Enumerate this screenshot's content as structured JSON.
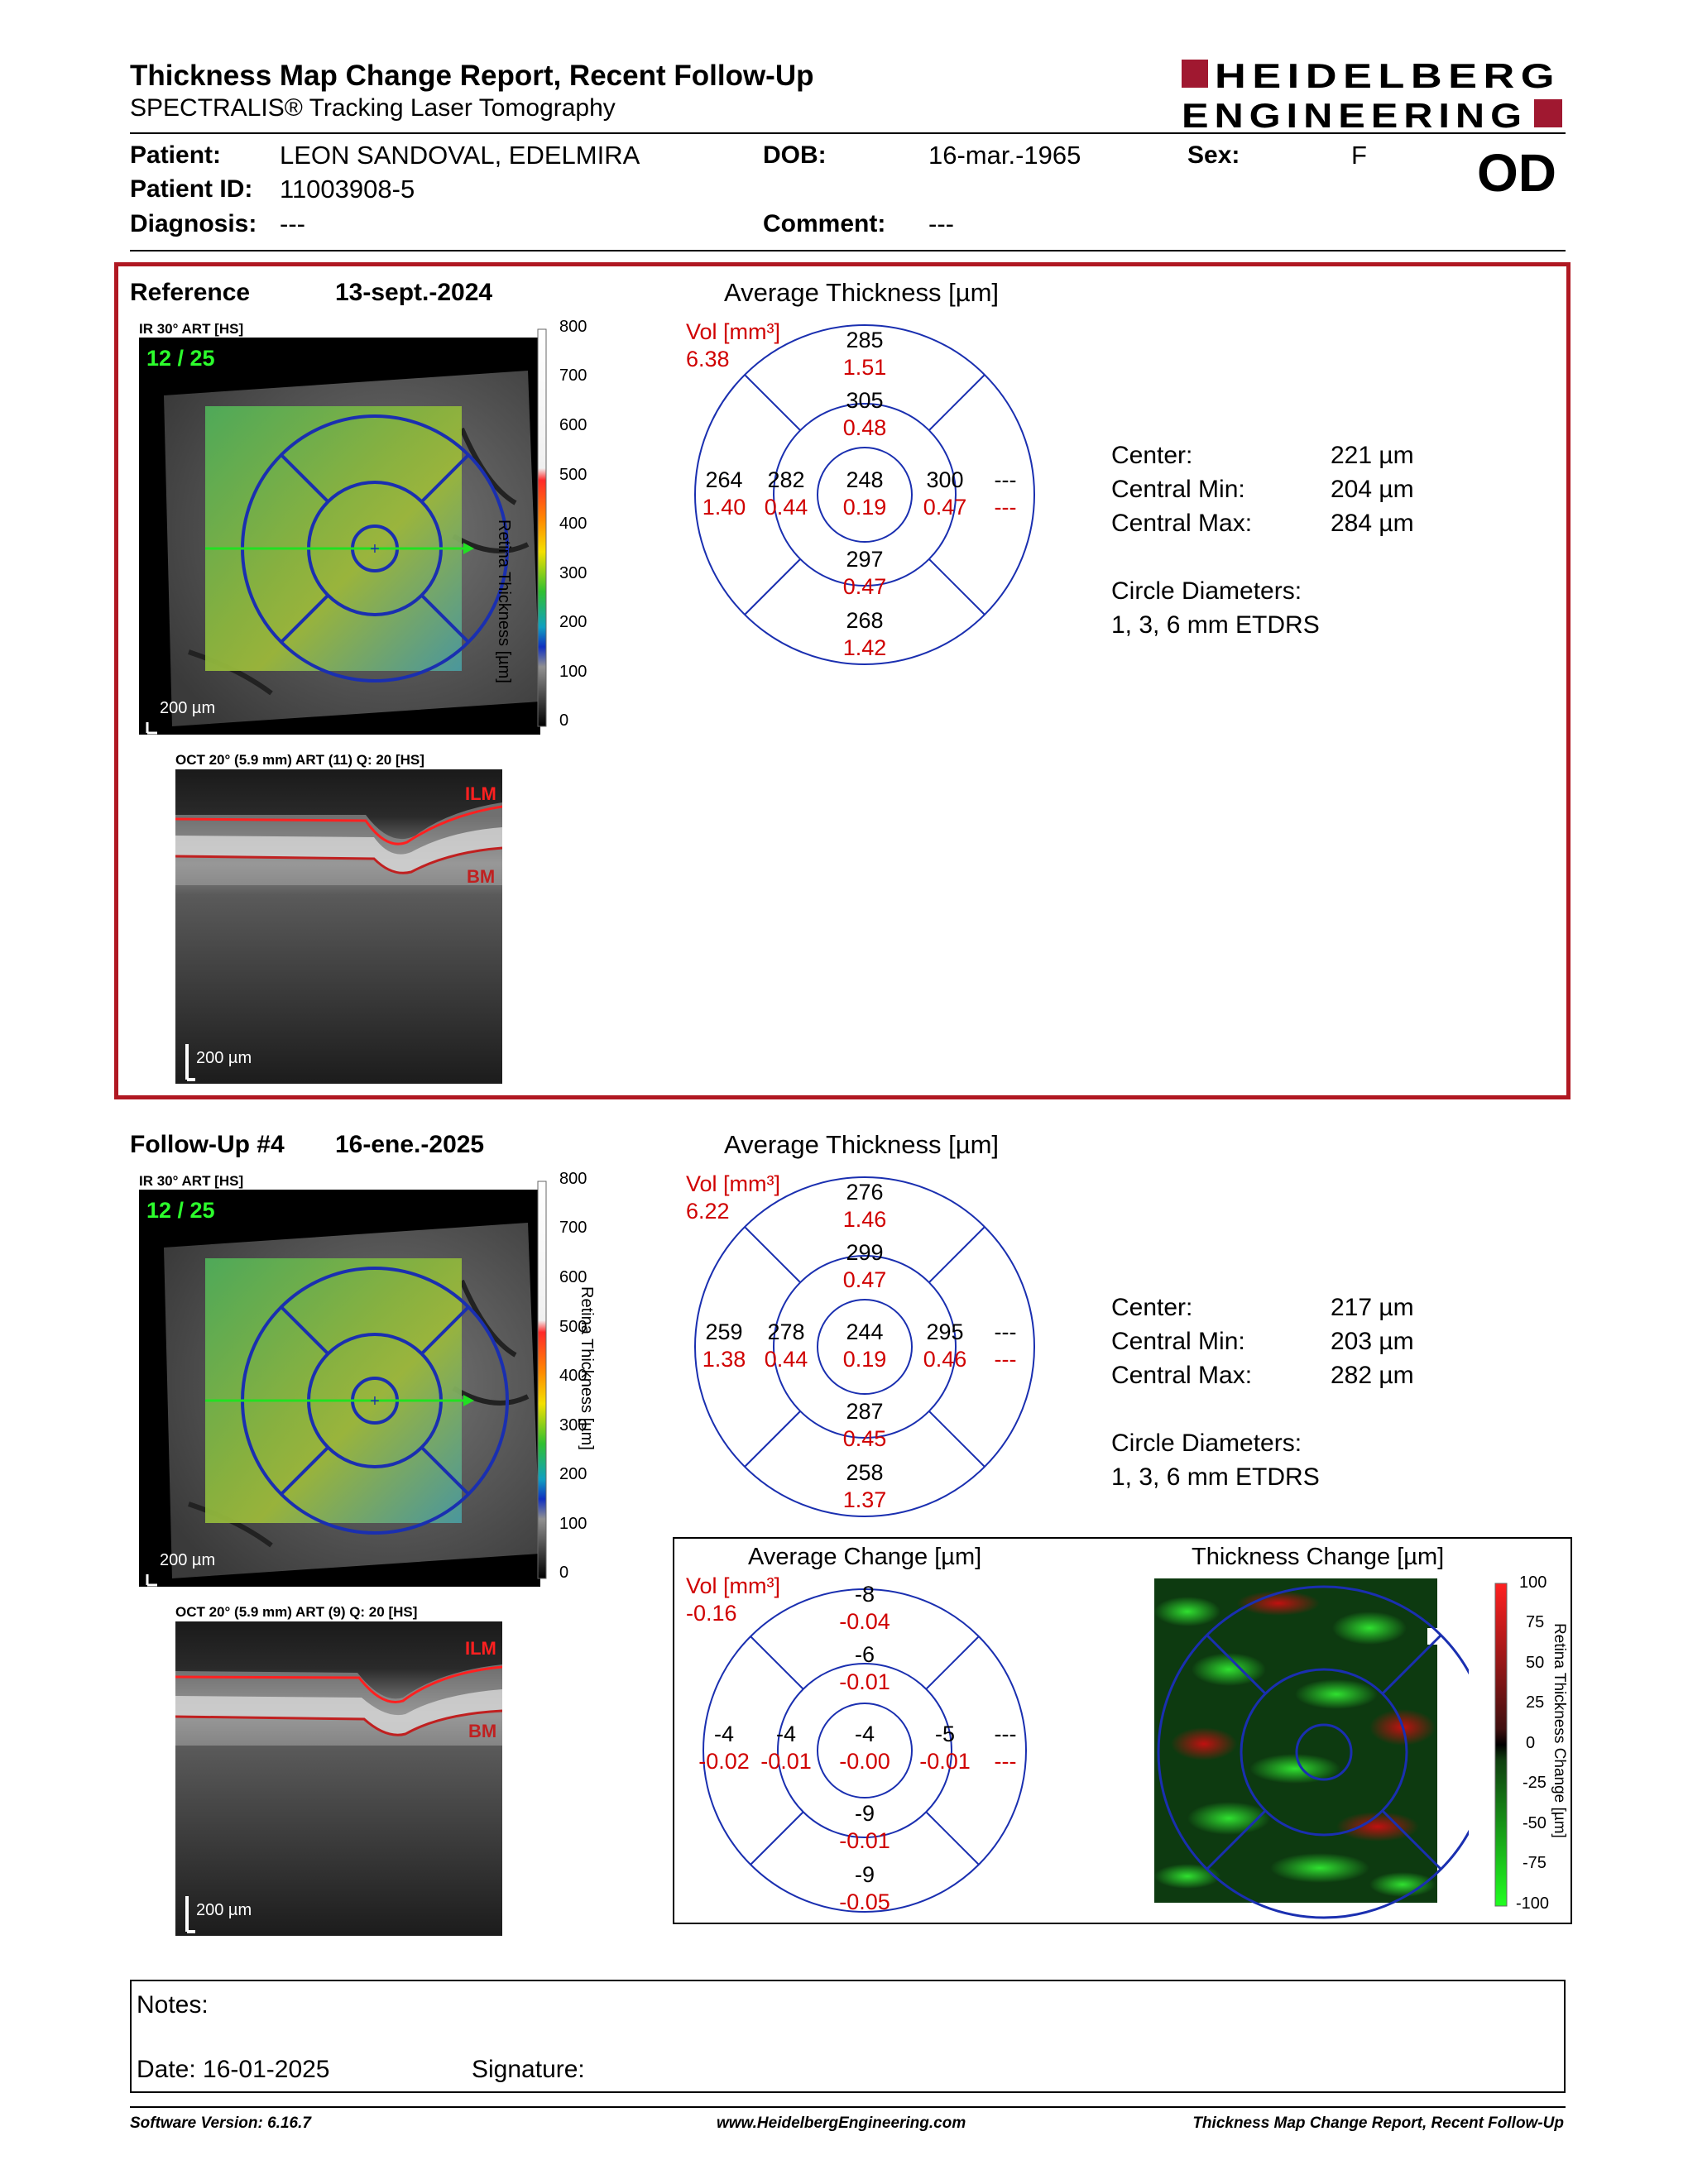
{
  "header": {
    "title": "Thickness Map Change Report, Recent Follow-Up",
    "subtitle": "SPECTRALIS® Tracking Laser Tomography",
    "logo_line1": "HEIDELBERG",
    "logo_line2": "ENGINEERING"
  },
  "patient": {
    "patient_label": "Patient:",
    "patient_value": "LEON SANDOVAL, EDELMIRA",
    "dob_label": "DOB:",
    "dob_value": "16-mar.-1965",
    "sex_label": "Sex:",
    "sex_value": "F",
    "id_label": "Patient ID:",
    "id_value": "11003908-5",
    "diagnosis_label": "Diagnosis:",
    "diagnosis_value": "---",
    "comment_label": "Comment:",
    "comment_value": "---",
    "eye": "OD"
  },
  "colors": {
    "red_border": "#b01822",
    "etdrs_blue": "#1a2fb0",
    "vol_red": "#d00000"
  },
  "reference": {
    "label": "Reference",
    "date": "13-sept.-2024",
    "ir_label": "IR 30° ART [HS]",
    "ir_count": "12 / 25",
    "ir_scale": "200 µm",
    "oct_label": "OCT 20° (5.9 mm) ART (11) Q: 20 [HS]",
    "oct_scale": "200 µm",
    "ilm": "ILM",
    "bm": "BM",
    "avg_title": "Average Thickness [µm]",
    "vol_label": "Vol [mm³]",
    "vol_total": "6.38",
    "etdrs": {
      "outer_top": "285",
      "outer_top_v": "1.51",
      "inner_top": "305",
      "inner_top_v": "0.48",
      "center": "248",
      "center_v": "0.19",
      "outer_left": "264",
      "outer_left_v": "1.40",
      "inner_left": "282",
      "inner_left_v": "0.44",
      "inner_right": "300",
      "inner_right_v": "0.47",
      "outer_right": "---",
      "outer_right_v": "---",
      "inner_bottom": "297",
      "inner_bottom_v": "0.47",
      "outer_bottom": "268",
      "outer_bottom_v": "1.42"
    },
    "stats": {
      "center_label": "Center:",
      "center_value": "221 µm",
      "min_label": "Central Min:",
      "min_value": "204 µm",
      "max_label": "Central Max:",
      "max_value": "284 µm",
      "circle_label": "Circle Diameters:",
      "circle_value": "1, 3, 6 mm ETDRS"
    }
  },
  "followup": {
    "label": "Follow-Up #4",
    "date": "16-ene.-2025",
    "ir_label": "IR 30° ART [HS]",
    "ir_count": "12 / 25",
    "ir_scale": "200 µm",
    "oct_label": "OCT 20° (5.9 mm) ART (9) Q: 20 [HS]",
    "oct_scale": "200 µm",
    "ilm": "ILM",
    "bm": "BM",
    "avg_title": "Average Thickness [µm]",
    "vol_label": "Vol [mm³]",
    "vol_total": "6.22",
    "etdrs": {
      "outer_top": "276",
      "outer_top_v": "1.46",
      "inner_top": "299",
      "inner_top_v": "0.47",
      "center": "244",
      "center_v": "0.19",
      "outer_left": "259",
      "outer_left_v": "1.38",
      "inner_left": "278",
      "inner_left_v": "0.44",
      "inner_right": "295",
      "inner_right_v": "0.46",
      "outer_right": "---",
      "outer_right_v": "---",
      "inner_bottom": "287",
      "inner_bottom_v": "0.45",
      "outer_bottom": "258",
      "outer_bottom_v": "1.37"
    },
    "stats": {
      "center_label": "Center:",
      "center_value": "217 µm",
      "min_label": "Central Min:",
      "min_value": "203 µm",
      "max_label": "Central Max:",
      "max_value": "282 µm",
      "circle_label": "Circle Diameters:",
      "circle_value": "1, 3, 6 mm ETDRS"
    }
  },
  "change": {
    "avg_title": "Average Change [µm]",
    "vol_label": "Vol [mm³]",
    "vol_total": "-0.16",
    "etdrs": {
      "outer_top": "-8",
      "outer_top_v": "-0.04",
      "inner_top": "-6",
      "inner_top_v": "-0.01",
      "center": "-4",
      "center_v": "-0.00",
      "outer_left": "-4",
      "outer_left_v": "-0.02",
      "inner_left": "-4",
      "inner_left_v": "-0.01",
      "inner_right": "-5",
      "inner_right_v": "-0.01",
      "outer_right": "---",
      "outer_right_v": "---",
      "inner_bottom": "-9",
      "inner_bottom_v": "-0.01",
      "outer_bottom": "-9",
      "outer_bottom_v": "-0.05"
    },
    "map_title": "Thickness Change [µm]",
    "scale_title": "Retina Thickness Change [µm]",
    "scale_ticks": [
      "100",
      "75",
      "50",
      "25",
      "0",
      "-25",
      "-50",
      "-75",
      "-100"
    ]
  },
  "thickness_scale": {
    "title": "Retina Thickness [µm]",
    "ticks": [
      "800",
      "700",
      "600",
      "500",
      "400",
      "300",
      "200",
      "100",
      "0"
    ]
  },
  "notes": {
    "notes_label": "Notes:",
    "date_label": "Date: 16-01-2025",
    "signature_label": "Signature:"
  },
  "footer": {
    "software": "Software Version: 6.16.7",
    "url": "www.HeidelbergEngineering.com",
    "report": "Thickness Map Change Report, Recent Follow-Up"
  }
}
